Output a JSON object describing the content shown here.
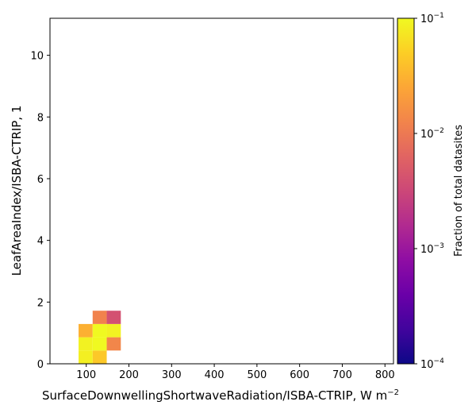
{
  "chart_data": {
    "type": "heatmap",
    "xlabel": "SurfaceDownwellingShortwaveRadiation/ISBA-CTRIP,  W m",
    "xlabel_superscript": "−2",
    "ylabel": "LeafAreaIndex/ISBA-CTRIP,  1",
    "xlim": [
      15,
      820
    ],
    "ylim": [
      0,
      11.2
    ],
    "xticks": [
      100,
      200,
      300,
      400,
      500,
      600,
      700,
      800
    ],
    "yticks": [
      0,
      2,
      4,
      6,
      8,
      10
    ],
    "xtick_labels": [
      "100",
      "200",
      "300",
      "400",
      "500",
      "600",
      "700",
      "800"
    ],
    "ytick_labels": [
      "0",
      "2",
      "4",
      "6",
      "8",
      "10"
    ],
    "bin_width_x": 33,
    "bin_height_y": 0.43,
    "cells": [
      {
        "x0": 82,
        "y0": 0.0,
        "value": 0.085
      },
      {
        "x0": 115,
        "y0": 0.0,
        "value": 0.045
      },
      {
        "x0": 82,
        "y0": 0.43,
        "value": 0.09
      },
      {
        "x0": 115,
        "y0": 0.43,
        "value": 0.1
      },
      {
        "x0": 148,
        "y0": 0.43,
        "value": 0.013
      },
      {
        "x0": 82,
        "y0": 0.86,
        "value": 0.03
      },
      {
        "x0": 115,
        "y0": 0.86,
        "value": 0.1
      },
      {
        "x0": 148,
        "y0": 0.86,
        "value": 0.09
      },
      {
        "x0": 115,
        "y0": 1.29,
        "value": 0.012
      },
      {
        "x0": 148,
        "y0": 1.29,
        "value": 0.004
      }
    ],
    "colorbar": {
      "label": "Fraction of total datasites",
      "scale": "log",
      "range": [
        0.0001,
        0.1
      ],
      "colormap": "plasma",
      "ticks": [
        {
          "value": 0.1,
          "base": "10",
          "exp": "−1"
        },
        {
          "value": 0.01,
          "base": "10",
          "exp": "−2"
        },
        {
          "value": 0.001,
          "base": "10",
          "exp": "−3"
        },
        {
          "value": 0.0001,
          "base": "10",
          "exp": "−4"
        }
      ]
    },
    "grid": false
  }
}
